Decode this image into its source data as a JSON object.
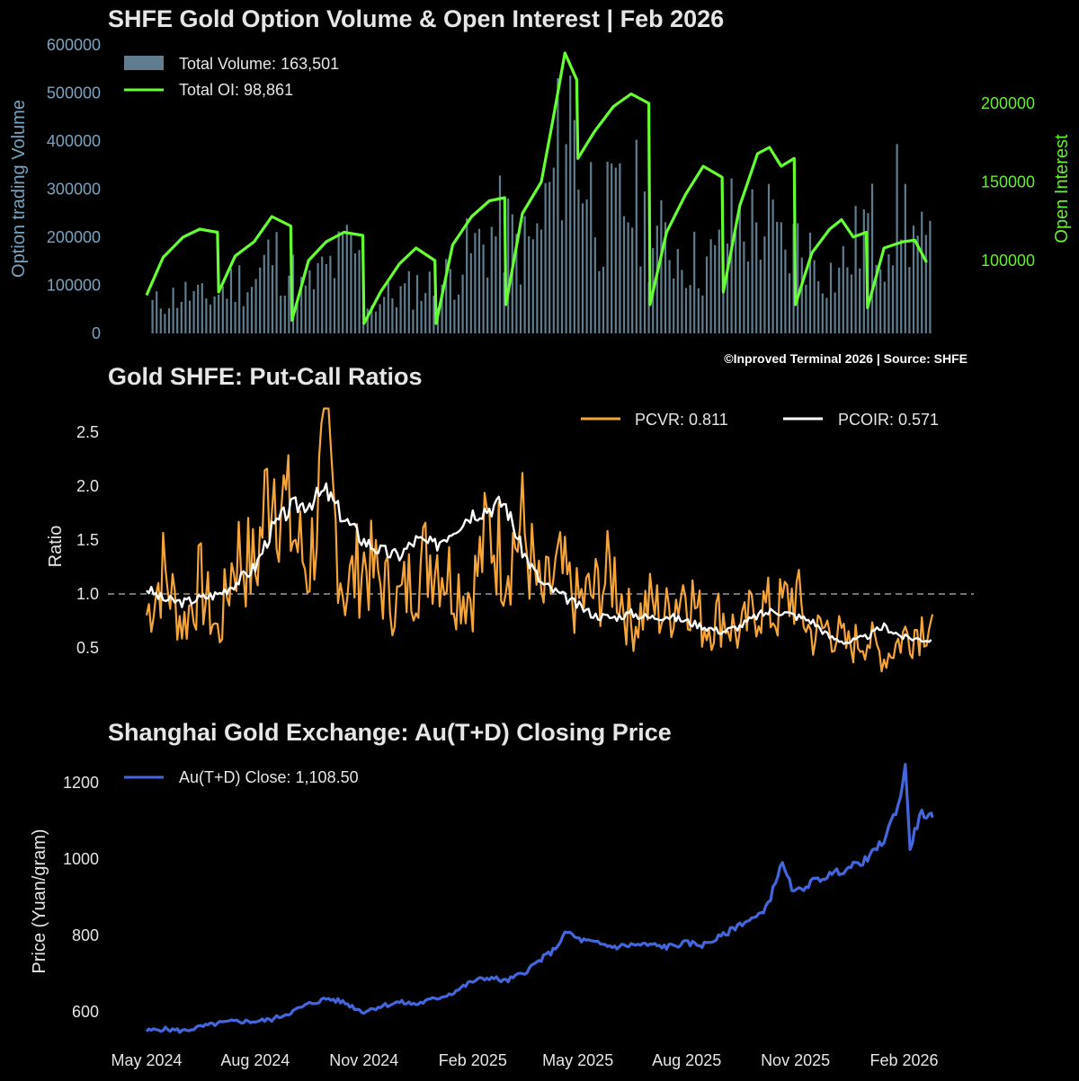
{
  "chart_data": [
    {
      "type": "bar",
      "title": "SHFE Gold Option Volume & Open Interest | Feb 2026",
      "ylabel": "Option trading Volume",
      "y2label": "Open Interest",
      "ylim": [
        0,
        600000
      ],
      "y2lim": [
        50000,
        240000
      ],
      "yticks": [
        0,
        100000,
        200000,
        300000,
        400000,
        500000,
        600000
      ],
      "y2ticks": [
        100000,
        150000,
        200000
      ],
      "x_range": [
        "2024-05-01",
        "2026-02-28"
      ],
      "credit": "©Inproved Terminal 2026 | Source: SHFE",
      "legend_position": "top-left",
      "colors": {
        "volume": "#5f7d8e",
        "oi": "#66ff33",
        "left_axis": "#7aa3c1",
        "right_axis": "#66ee33"
      },
      "series": [
        {
          "name": "Total Volume: 163,501",
          "kind": "bar",
          "x": [
            "2024-05-08",
            "2024-05-22",
            "2024-06-05",
            "2024-06-19",
            "2024-07-03",
            "2024-07-17",
            "2024-07-31",
            "2024-08-14",
            "2024-08-28",
            "2024-09-11",
            "2024-09-25",
            "2024-10-09",
            "2024-10-23",
            "2024-11-06",
            "2024-11-20",
            "2024-12-04",
            "2024-12-18",
            "2025-01-01",
            "2025-01-15",
            "2025-01-29",
            "2025-02-12",
            "2025-02-26",
            "2025-03-12",
            "2025-03-26",
            "2025-04-09",
            "2025-04-23",
            "2025-05-07",
            "2025-05-21",
            "2025-06-04",
            "2025-06-18",
            "2025-07-02",
            "2025-07-16",
            "2025-07-30",
            "2025-08-13",
            "2025-08-27",
            "2025-09-10",
            "2025-09-24",
            "2025-10-08",
            "2025-10-22",
            "2025-11-05",
            "2025-11-19",
            "2025-12-03",
            "2025-12-17",
            "2025-12-31",
            "2026-01-14",
            "2026-01-28",
            "2026-02-11",
            "2026-02-25"
          ],
          "values": [
            65000,
            80000,
            90000,
            75000,
            95000,
            120000,
            110000,
            180000,
            150000,
            90000,
            130000,
            160000,
            200000,
            60000,
            85000,
            90000,
            110000,
            100000,
            140000,
            180000,
            210000,
            240000,
            190000,
            200000,
            330000,
            520000,
            350000,
            250000,
            280000,
            300000,
            220000,
            200000,
            180000,
            150000,
            170000,
            260000,
            240000,
            250000,
            180000,
            210000,
            160000,
            130000,
            170000,
            250000,
            210000,
            300000,
            210000,
            163501
          ]
        },
        {
          "name": "Total OI: 98,861",
          "kind": "line",
          "x": [
            "2024-05-01",
            "2024-05-15",
            "2024-06-01",
            "2024-06-15",
            "2024-06-30",
            "2024-07-01",
            "2024-07-15",
            "2024-07-31",
            "2024-08-15",
            "2024-08-31",
            "2024-09-01",
            "2024-09-15",
            "2024-09-30",
            "2024-10-15",
            "2024-10-31",
            "2024-11-01",
            "2024-11-15",
            "2024-12-01",
            "2024-12-15",
            "2024-12-31",
            "2025-01-01",
            "2025-01-15",
            "2025-01-31",
            "2025-02-15",
            "2025-02-28",
            "2025-03-01",
            "2025-03-15",
            "2025-03-31",
            "2025-04-10",
            "2025-04-20",
            "2025-04-30",
            "2025-05-01",
            "2025-05-15",
            "2025-05-31",
            "2025-06-15",
            "2025-06-30",
            "2025-07-01",
            "2025-07-15",
            "2025-07-31",
            "2025-08-15",
            "2025-08-31",
            "2025-09-01",
            "2025-09-15",
            "2025-09-30",
            "2025-10-10",
            "2025-10-20",
            "2025-10-31",
            "2025-11-01",
            "2025-11-15",
            "2025-11-30",
            "2025-12-10",
            "2025-12-20",
            "2025-12-31",
            "2026-01-01",
            "2026-01-15",
            "2026-01-31",
            "2026-02-10",
            "2026-02-20"
          ],
          "values": [
            78000,
            102000,
            115000,
            120000,
            118000,
            80000,
            103000,
            112000,
            128000,
            122000,
            62000,
            100000,
            112000,
            118000,
            116000,
            60000,
            80000,
            98000,
            108000,
            100000,
            60000,
            110000,
            128000,
            138000,
            140000,
            72000,
            130000,
            150000,
            190000,
            232000,
            215000,
            165000,
            182000,
            198000,
            206000,
            200000,
            72000,
            118000,
            142000,
            160000,
            153000,
            80000,
            135000,
            168000,
            172000,
            160000,
            165000,
            72000,
            105000,
            120000,
            126000,
            115000,
            118000,
            70000,
            108000,
            112000,
            113000,
            98861
          ]
        }
      ]
    },
    {
      "type": "line",
      "title": "Gold SHFE: Put-Call Ratios",
      "ylabel": "Ratio",
      "ylim": [
        0.2,
        2.8
      ],
      "yticks": [
        0.5,
        1.0,
        1.5,
        2.0,
        2.5
      ],
      "reference_line": 1.0,
      "x_range": [
        "2024-05-01",
        "2026-02-28"
      ],
      "legend_position": "top-right",
      "colors": {
        "pcvr": "#f5a43a",
        "pcoir": "#ffffff",
        "reference": "#9a9a9a"
      },
      "series": [
        {
          "name": "PCVR: 0.811",
          "x": [
            "2024-05-01",
            "2024-05-15",
            "2024-06-01",
            "2024-06-15",
            "2024-07-01",
            "2024-07-15",
            "2024-08-01",
            "2024-08-15",
            "2024-08-31",
            "2024-09-15",
            "2024-09-30",
            "2024-10-15",
            "2024-10-31",
            "2024-11-15",
            "2024-11-30",
            "2024-12-15",
            "2024-12-31",
            "2025-01-15",
            "2025-01-31",
            "2025-02-15",
            "2025-02-28",
            "2025-03-15",
            "2025-03-31",
            "2025-04-15",
            "2025-04-30",
            "2025-05-15",
            "2025-05-31",
            "2025-06-15",
            "2025-06-30",
            "2025-07-15",
            "2025-07-31",
            "2025-08-15",
            "2025-08-31",
            "2025-09-15",
            "2025-09-30",
            "2025-10-15",
            "2025-10-31",
            "2025-11-15",
            "2025-11-30",
            "2025-12-15",
            "2025-12-31",
            "2026-01-15",
            "2026-01-31",
            "2026-02-15",
            "2026-02-25"
          ],
          "values": [
            0.8,
            1.2,
            0.7,
            1.1,
            0.6,
            1.4,
            1.2,
            2.2,
            1.6,
            1.2,
            2.3,
            1.0,
            1.3,
            1.1,
            0.9,
            1.2,
            1.4,
            1.1,
            1.0,
            1.6,
            1.3,
            1.6,
            0.9,
            1.2,
            0.9,
            1.0,
            1.2,
            0.7,
            0.9,
            0.8,
            1.1,
            0.7,
            0.8,
            0.6,
            0.9,
            0.8,
            1.0,
            0.6,
            0.7,
            0.5,
            0.6,
            0.4,
            0.6,
            0.7,
            0.811
          ]
        },
        {
          "name": "PCOIR: 0.571",
          "x": [
            "2024-05-01",
            "2024-05-15",
            "2024-06-01",
            "2024-06-15",
            "2024-07-01",
            "2024-07-15",
            "2024-08-01",
            "2024-08-15",
            "2024-08-31",
            "2024-09-15",
            "2024-09-30",
            "2024-10-15",
            "2024-10-31",
            "2024-11-15",
            "2024-11-30",
            "2024-12-15",
            "2024-12-31",
            "2025-01-15",
            "2025-01-31",
            "2025-02-15",
            "2025-02-28",
            "2025-03-15",
            "2025-03-31",
            "2025-04-15",
            "2025-04-30",
            "2025-05-15",
            "2025-05-31",
            "2025-06-15",
            "2025-06-30",
            "2025-07-15",
            "2025-07-31",
            "2025-08-15",
            "2025-08-31",
            "2025-09-15",
            "2025-09-30",
            "2025-10-15",
            "2025-10-31",
            "2025-11-15",
            "2025-11-30",
            "2025-12-15",
            "2025-12-31",
            "2026-01-15",
            "2026-01-31",
            "2026-02-15",
            "2026-02-25"
          ],
          "values": [
            1.05,
            0.95,
            0.92,
            0.96,
            1.0,
            1.1,
            1.25,
            1.6,
            1.8,
            1.85,
            1.95,
            1.7,
            1.5,
            1.4,
            1.35,
            1.5,
            1.45,
            1.6,
            1.75,
            1.8,
            1.85,
            1.4,
            1.1,
            1.0,
            0.9,
            0.8,
            0.78,
            0.82,
            0.78,
            0.8,
            0.75,
            0.7,
            0.65,
            0.7,
            0.8,
            0.85,
            0.8,
            0.75,
            0.6,
            0.55,
            0.6,
            0.7,
            0.6,
            0.58,
            0.571
          ]
        }
      ]
    },
    {
      "type": "line",
      "title": "Shanghai Gold Exchange: Au(T+D) Closing Price",
      "ylabel": "Price (Yuan/gram)",
      "ylim": [
        530,
        1260
      ],
      "yticks": [
        600,
        800,
        1000,
        1200
      ],
      "x_range": [
        "2024-05-01",
        "2026-02-28"
      ],
      "xticks": [
        "May 2024",
        "Aug 2024",
        "Nov 2024",
        "Feb 2025",
        "May 2025",
        "Aug 2025",
        "Nov 2025",
        "Feb 2026"
      ],
      "xtick_dates": [
        "2024-05-01",
        "2024-08-01",
        "2024-11-01",
        "2025-02-01",
        "2025-05-01",
        "2025-08-01",
        "2025-11-01",
        "2026-02-01"
      ],
      "legend_position": "top-left",
      "colors": {
        "price": "#4466dd"
      },
      "series": [
        {
          "name": "Au(T+D) Close: 1,108.50",
          "x": [
            "2024-05-01",
            "2024-05-15",
            "2024-06-01",
            "2024-06-15",
            "2024-07-01",
            "2024-07-15",
            "2024-08-01",
            "2024-08-15",
            "2024-09-01",
            "2024-09-15",
            "2024-10-01",
            "2024-10-15",
            "2024-10-31",
            "2024-11-15",
            "2024-12-01",
            "2024-12-15",
            "2025-01-01",
            "2025-01-15",
            "2025-02-01",
            "2025-02-15",
            "2025-03-01",
            "2025-03-15",
            "2025-04-01",
            "2025-04-10",
            "2025-04-22",
            "2025-05-01",
            "2025-05-15",
            "2025-06-01",
            "2025-06-15",
            "2025-07-01",
            "2025-07-15",
            "2025-08-01",
            "2025-08-15",
            "2025-09-01",
            "2025-09-15",
            "2025-10-01",
            "2025-10-10",
            "2025-10-20",
            "2025-10-31",
            "2025-11-15",
            "2025-12-01",
            "2025-12-15",
            "2026-01-01",
            "2026-01-15",
            "2026-01-28",
            "2026-02-02",
            "2026-02-06",
            "2026-02-15",
            "2026-02-25"
          ],
          "values": [
            550,
            555,
            550,
            560,
            570,
            575,
            575,
            580,
            600,
            620,
            635,
            625,
            600,
            615,
            625,
            620,
            635,
            650,
            680,
            690,
            680,
            700,
            740,
            760,
            810,
            790,
            780,
            770,
            775,
            775,
            770,
            780,
            775,
            800,
            830,
            850,
            890,
            990,
            910,
            940,
            960,
            975,
            1000,
            1050,
            1150,
            1240,
            1030,
            1120,
            1108.5
          ]
        }
      ]
    }
  ]
}
